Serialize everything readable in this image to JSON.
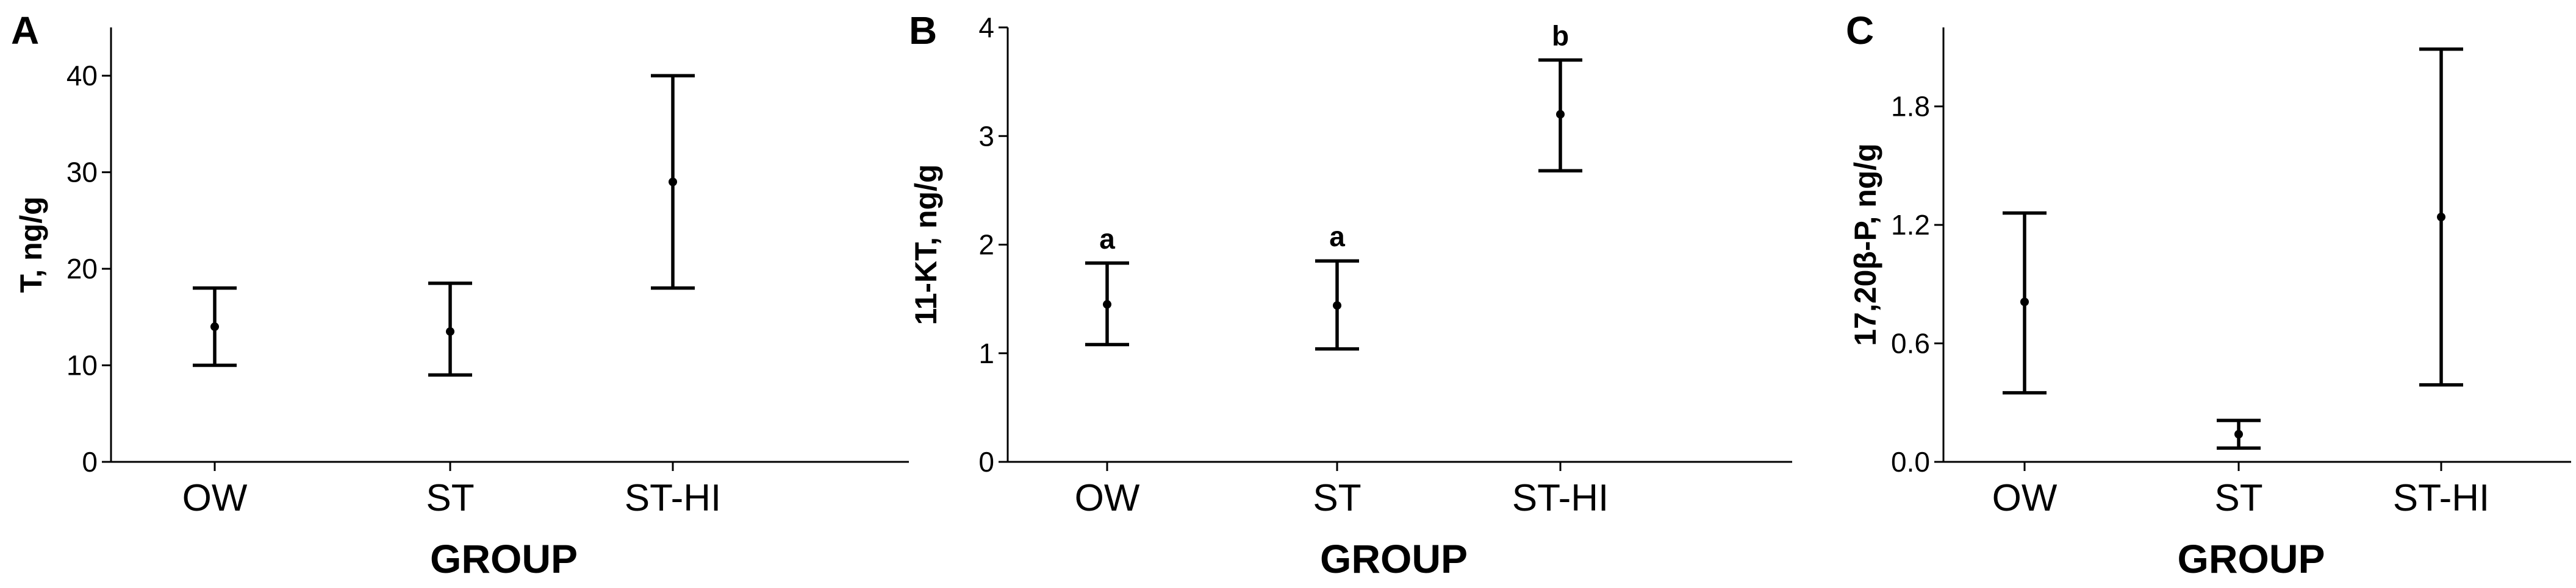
{
  "chart_data": [
    {
      "panel": "A",
      "type": "scatter",
      "title": "",
      "xlabel": "GROUP",
      "ylabel": "T, ng/g",
      "categories": [
        "OW",
        "ST",
        "ST-HI"
      ],
      "ylim": [
        0,
        45
      ],
      "yticks": [
        0,
        10,
        20,
        30,
        40
      ],
      "ytick_labels": [
        "0",
        "10",
        "20",
        "30",
        "40"
      ],
      "grid": false,
      "values": [
        14,
        13.5,
        29
      ],
      "lower": [
        10,
        9,
        18
      ],
      "upper": [
        18,
        18.5,
        40
      ],
      "labels": [
        "",
        "",
        ""
      ]
    },
    {
      "panel": "B",
      "type": "scatter",
      "title": "",
      "xlabel": "GROUP",
      "ylabel": "11-KT, ng/g",
      "categories": [
        "OW",
        "ST",
        "ST-HI"
      ],
      "ylim": [
        0,
        4
      ],
      "yticks": [
        0,
        1,
        2,
        3,
        4
      ],
      "ytick_labels": [
        "0",
        "1",
        "2",
        "3",
        "4"
      ],
      "grid": false,
      "values": [
        1.45,
        1.44,
        3.2
      ],
      "lower": [
        1.08,
        1.04,
        2.68
      ],
      "upper": [
        1.83,
        1.85,
        3.7
      ],
      "labels": [
        "a",
        "a",
        "b"
      ]
    },
    {
      "panel": "C",
      "type": "scatter",
      "title": "",
      "xlabel": "GROUP",
      "ylabel": "17,20β-P, ng/g",
      "categories": [
        "OW",
        "ST",
        "ST-HI"
      ],
      "ylim": [
        0,
        2.2
      ],
      "yticks": [
        0,
        0.6,
        1.2,
        1.8
      ],
      "ytick_labels": [
        "0.0",
        "0.6",
        "1.2",
        "1.8"
      ],
      "grid": false,
      "values": [
        0.81,
        0.14,
        1.24
      ],
      "lower": [
        0.35,
        0.07,
        0.39
      ],
      "upper": [
        1.26,
        0.21,
        2.09
      ],
      "labels": [
        "",
        "",
        ""
      ]
    }
  ]
}
